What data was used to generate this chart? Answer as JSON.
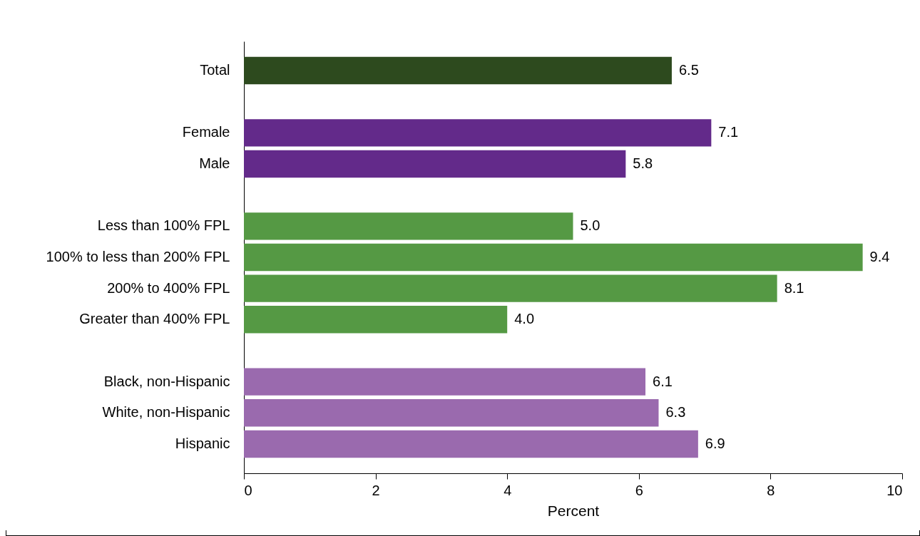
{
  "chart_data": {
    "type": "bar",
    "orientation": "horizontal",
    "xlabel": "Percent",
    "categories": [
      "Total",
      null,
      "Female",
      "Male",
      null,
      "Less than 100% FPL",
      "100% to less than 200% FPL",
      "200% to 400% FPL",
      "Greater than 400% FPL",
      null,
      "Black, non-Hispanic",
      "White, non-Hispanic",
      "Hispanic"
    ],
    "values": [
      6.5,
      null,
      7.1,
      5.8,
      null,
      5.0,
      9.4,
      8.1,
      4.0,
      null,
      6.1,
      6.3,
      6.9
    ],
    "colors": [
      "#2d4a1e",
      null,
      "#632a8a",
      "#632a8a",
      null,
      "#559944",
      "#559944",
      "#559944",
      "#559944",
      null,
      "#9a6aae",
      "#9a6aae",
      "#9a6aae"
    ],
    "value_labels": [
      "6.5",
      null,
      "7.1",
      "5.8",
      null,
      "5.0",
      "9.4",
      "8.1",
      "4.0",
      null,
      "6.1",
      "6.3",
      "6.9"
    ],
    "xlim": [
      0,
      10
    ],
    "xticks": [
      0,
      2,
      4,
      6,
      8,
      10
    ],
    "grid": false
  }
}
